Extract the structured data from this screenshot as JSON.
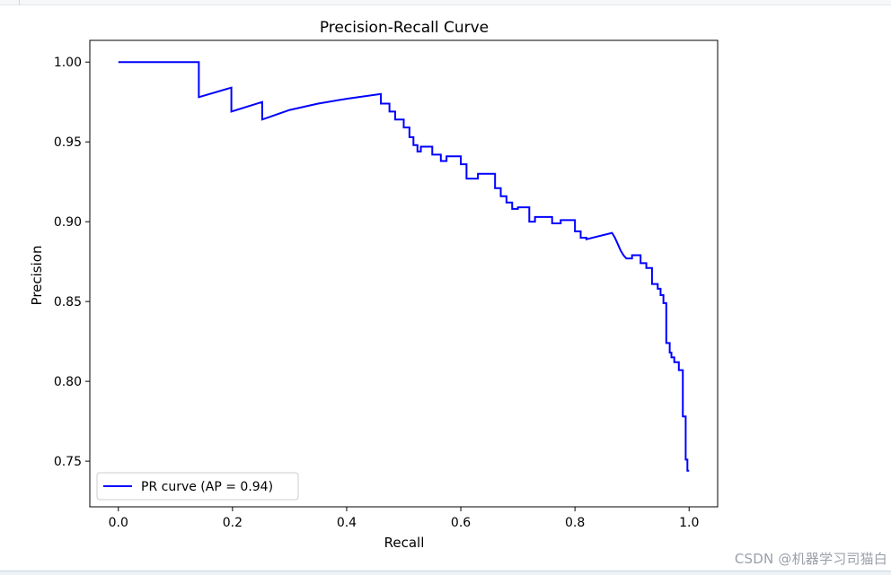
{
  "chart_data": {
    "type": "line",
    "title": "Precision-Recall Curve",
    "xlabel": "Recall",
    "ylabel": "Precision",
    "xlim": [
      -0.05,
      1.05
    ],
    "ylim": [
      0.7214,
      1.0136
    ],
    "xticks": [
      0.0,
      0.2,
      0.4,
      0.6,
      0.8,
      1.0
    ],
    "xtick_labels": [
      "0.0",
      "0.2",
      "0.4",
      "0.6",
      "0.8",
      "1.0"
    ],
    "yticks": [
      0.75,
      0.8,
      0.85,
      0.9,
      0.95,
      1.0
    ],
    "ytick_labels": [
      "0.75",
      "0.80",
      "0.85",
      "0.90",
      "0.95",
      "1.00"
    ],
    "grid": false,
    "legend_position": "lower-left",
    "series": [
      {
        "name": "PR curve (AP = 0.94)",
        "color": "#0000ff",
        "x": [
          0.0,
          0.141,
          0.141,
          0.198,
          0.198,
          0.252,
          0.252,
          0.3,
          0.35,
          0.4,
          0.46,
          0.46,
          0.475,
          0.475,
          0.485,
          0.485,
          0.5,
          0.5,
          0.51,
          0.51,
          0.517,
          0.517,
          0.524,
          0.524,
          0.53,
          0.53,
          0.55,
          0.55,
          0.565,
          0.565,
          0.575,
          0.575,
          0.6,
          0.6,
          0.61,
          0.61,
          0.63,
          0.63,
          0.66,
          0.66,
          0.67,
          0.67,
          0.68,
          0.68,
          0.69,
          0.69,
          0.7,
          0.7,
          0.72,
          0.72,
          0.73,
          0.73,
          0.76,
          0.76,
          0.775,
          0.775,
          0.8,
          0.8,
          0.81,
          0.81,
          0.82,
          0.82,
          0.865,
          0.87,
          0.875,
          0.88,
          0.885,
          0.89,
          0.9,
          0.9,
          0.915,
          0.915,
          0.925,
          0.925,
          0.935,
          0.935,
          0.945,
          0.945,
          0.95,
          0.95,
          0.955,
          0.955,
          0.96,
          0.96,
          0.966,
          0.966,
          0.969,
          0.969,
          0.974,
          0.974,
          0.982,
          0.982,
          0.989,
          0.989,
          0.994,
          0.994,
          0.997,
          0.997,
          1.0
        ],
        "y": [
          1.0,
          1.0,
          0.978,
          0.984,
          0.969,
          0.975,
          0.964,
          0.97,
          0.974,
          0.977,
          0.98,
          0.974,
          0.974,
          0.969,
          0.969,
          0.964,
          0.964,
          0.959,
          0.959,
          0.953,
          0.953,
          0.948,
          0.948,
          0.944,
          0.944,
          0.947,
          0.947,
          0.942,
          0.942,
          0.938,
          0.938,
          0.941,
          0.941,
          0.936,
          0.936,
          0.927,
          0.927,
          0.93,
          0.93,
          0.921,
          0.921,
          0.916,
          0.916,
          0.912,
          0.912,
          0.908,
          0.908,
          0.909,
          0.909,
          0.9,
          0.9,
          0.903,
          0.903,
          0.899,
          0.899,
          0.901,
          0.901,
          0.894,
          0.894,
          0.89,
          0.89,
          0.889,
          0.893,
          0.89,
          0.886,
          0.882,
          0.879,
          0.877,
          0.877,
          0.879,
          0.879,
          0.874,
          0.874,
          0.871,
          0.871,
          0.861,
          0.861,
          0.858,
          0.858,
          0.854,
          0.854,
          0.849,
          0.849,
          0.824,
          0.824,
          0.818,
          0.818,
          0.815,
          0.815,
          0.812,
          0.812,
          0.807,
          0.807,
          0.778,
          0.778,
          0.751,
          0.751,
          0.744,
          0.744
        ]
      }
    ]
  },
  "watermark": "CSDN @机器学习司猫白"
}
